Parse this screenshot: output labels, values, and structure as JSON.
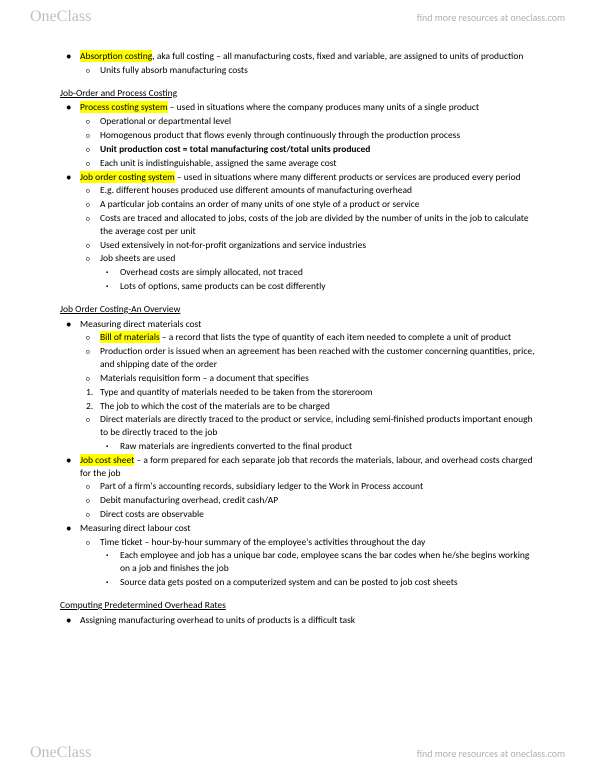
{
  "brand": {
    "part1": "One",
    "part2": "Class",
    "tagline": "find more resources at oneclass.com"
  },
  "colors": {
    "highlight": "#ffff00",
    "text": "#000000",
    "bg": "#ffffff",
    "watermark": "#c0c0c0"
  },
  "s1": {
    "i1a": "Absorption costing",
    "i1b": ", aka full costing – all manufacturing costs, fixed and variable, are assigned to units of production",
    "i1_1": "Units fully absorb manufacturing costs"
  },
  "s2": {
    "title": "Job-Order and Process Costing",
    "i1a": "Process costing system",
    "i1b": " – used in situations where the company produces many units of a single product",
    "i1_1": "Operational or departmental level",
    "i1_2": "Homogenous product that flows evenly through continuously through the production process",
    "i1_3a": "Unit production cost = total manufacturing cost/total units produced",
    "i1_4": "Each unit is indistinguishable, assigned the same average cost",
    "i2a": "Job order costing system",
    "i2b": " – used in situations where many different products or services are produced every period",
    "i2_1": "E.g. different houses produced use different amounts of manufacturing overhead",
    "i2_2": "A particular job contains an order of many units of one style of a product or service",
    "i2_3": "Costs are traced and allocated to jobs, costs of the job are divided by the number of units in the job to calculate the average cost per unit",
    "i2_4": "Used extensively in not-for-profit organizations and service industries",
    "i2_5": "Job sheets are used",
    "i2_5_1": "Overhead costs are simply allocated, not traced",
    "i2_5_2": "Lots of options, same products can be cost differently"
  },
  "s3": {
    "title": "Job Order Costing-An Overview",
    "i1": "Measuring direct materials cost",
    "i1_1a": "Bill of materials",
    "i1_1b": " – a record that lists the type of quantity of each item needed to complete a unit of product",
    "i1_2": "Production order is issued when an agreement has been reached with the customer concerning quantities, price, and shipping date of the order",
    "i1_3": "Materials requisition form – a document that specifies",
    "i1_3_n1": "Type and quantity of materials needed to be taken from the storeroom",
    "i1_3_n2": "The job to which the cost of the materials are to be charged",
    "i1_4": "Direct materials are directly traced to the product or service, including semi-finished products important enough to be directly traced to the job",
    "i1_4_1": "Raw materials are ingredients converted to the final product",
    "i2a": "Job cost sheet",
    "i2b": " – a form prepared for each separate job that records the materials, labour, and overhead costs charged for the job",
    "i2_1": "Part of a firm's accounting records, subsidiary ledger to the Work in Process account",
    "i2_2": "Debit manufacturing overhead, credit cash/AP",
    "i2_3": "Direct costs are observable",
    "i3": "Measuring direct labour cost",
    "i3_1": "Time ticket – hour-by-hour summary of the employee's activities throughout the day",
    "i3_1_1": "Each employee and job has a unique bar code, employee scans the bar codes when he/she begins working on a job and finishes the job",
    "i3_1_2": "Source data gets posted on a computerized system and can be posted to job cost sheets"
  },
  "s4": {
    "title": "Computing Predetermined Overhead Rates",
    "i1": "Assigning manufacturing overhead to units of products is a difficult task"
  }
}
